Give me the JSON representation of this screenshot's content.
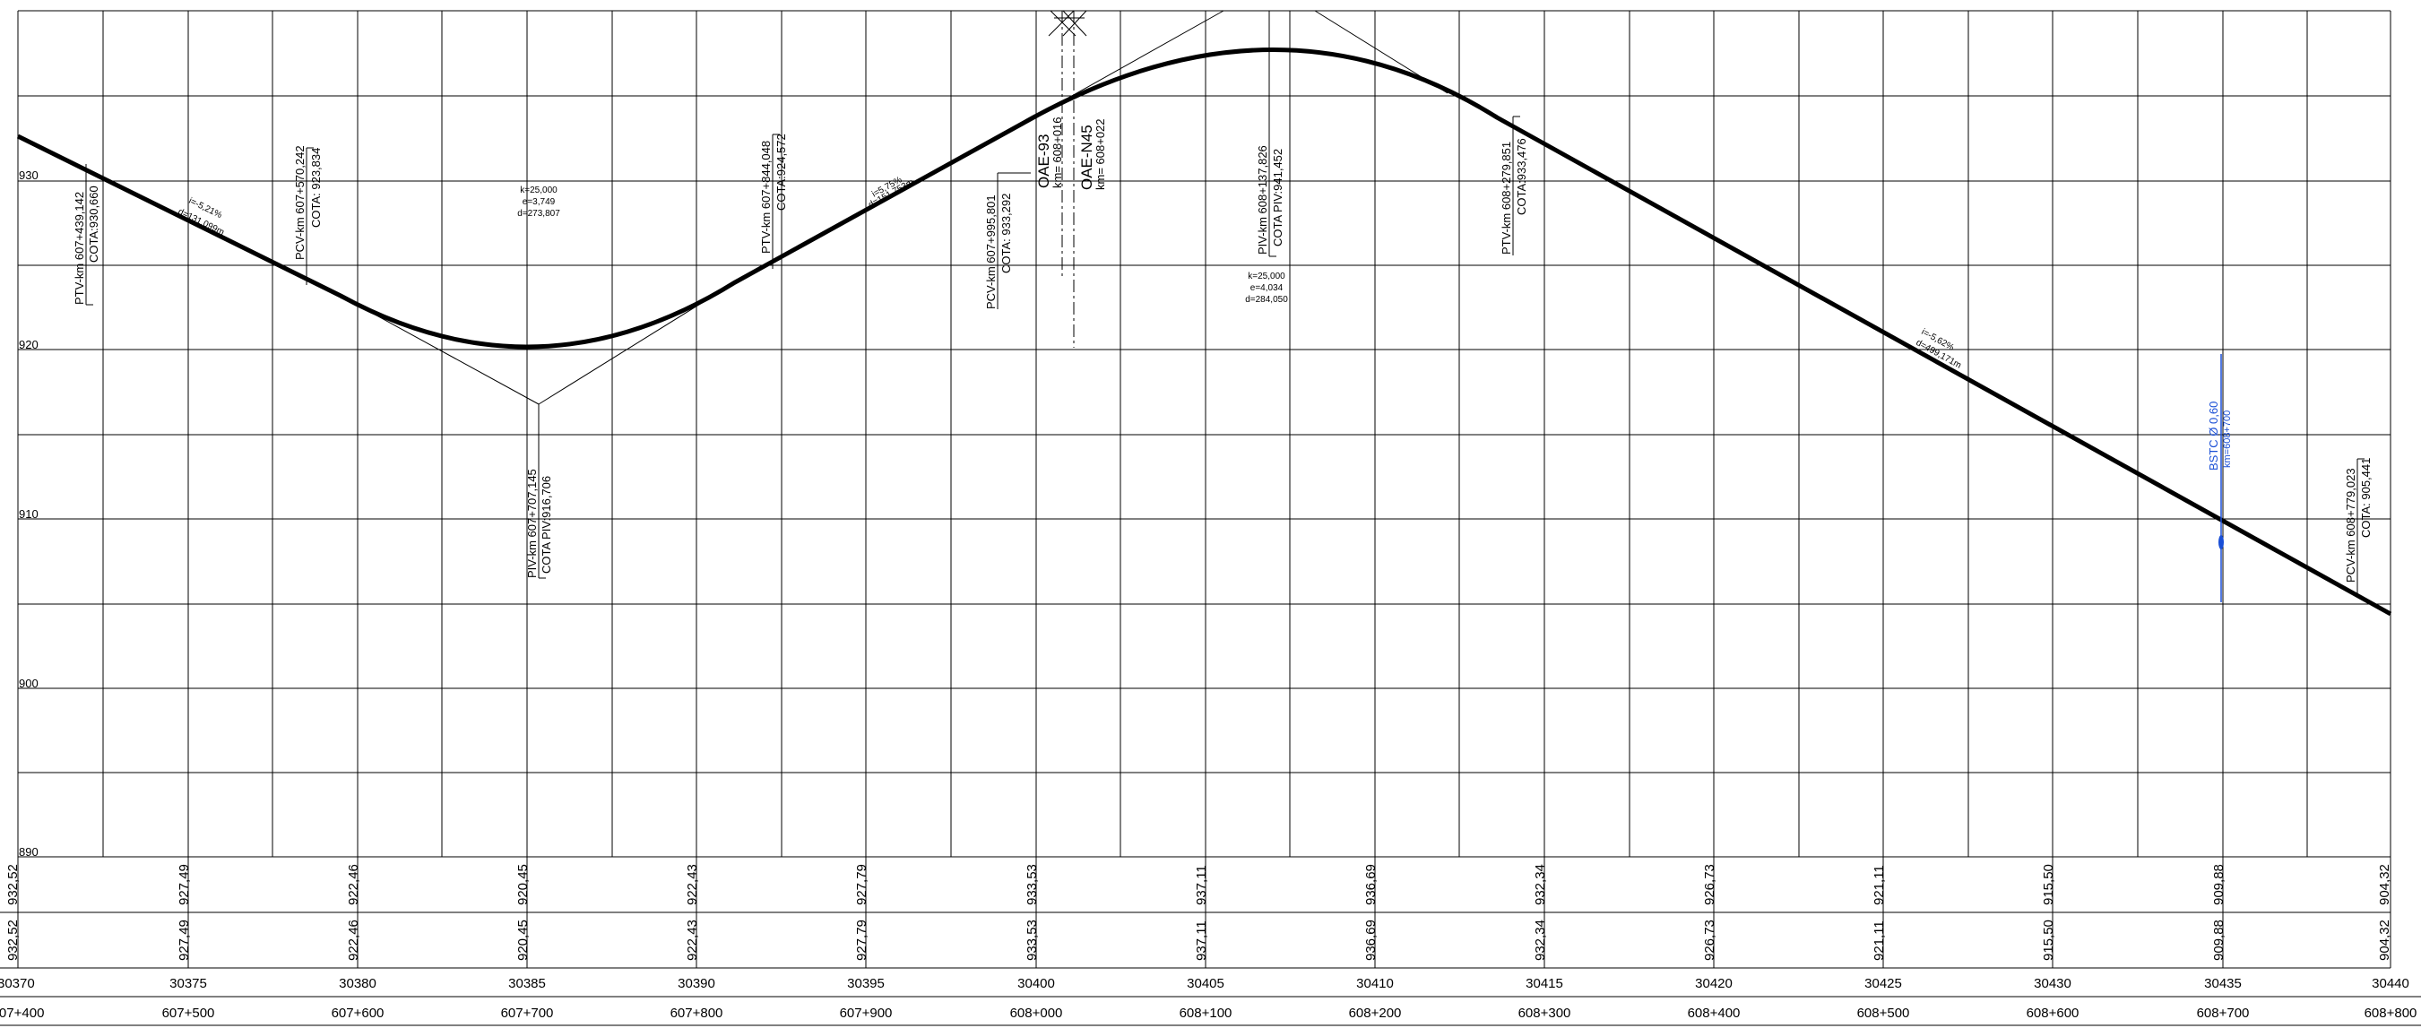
{
  "profile": {
    "y_axis_labels": [
      "930",
      "920",
      "910",
      "900",
      "890"
    ],
    "x_axis_stations": [
      "30370",
      "30375",
      "30380",
      "30385",
      "30390",
      "30395",
      "30400",
      "30405",
      "30410",
      "30415",
      "30420",
      "30425",
      "30430",
      "30435",
      "30440"
    ],
    "x_axis_km": [
      "607+400",
      "607+500",
      "607+600",
      "607+700",
      "607+800",
      "607+900",
      "608+000",
      "608+100",
      "608+200",
      "608+300",
      "608+400",
      "608+500",
      "608+600",
      "608+700",
      "608+800"
    ],
    "terrain_elevations": [
      "932,52",
      "927,49",
      "922,46",
      "920,45",
      "922,43",
      "927,79",
      "933,53",
      "937,11",
      "936,69",
      "932,34",
      "926,73",
      "921,11",
      "915,50",
      "909,88",
      "904,32"
    ],
    "design_elevations": [
      "932,52",
      "927,49",
      "922,46",
      "920,45",
      "922,43",
      "927,79",
      "933,53",
      "937,11",
      "936,69",
      "932,34",
      "926,73",
      "921,11",
      "915,50",
      "909,88",
      "904,32"
    ],
    "points": [
      {
        "line1": "PTV-km 607+439,142",
        "line2": "COTA:930,660"
      },
      {
        "line1": "PCV-km 607+570,242",
        "line2": "COTA: 923,834"
      },
      {
        "line1": "PIV-km 607+707,145",
        "line2": "COTA PIV:916,706"
      },
      {
        "line1": "PTV-km 607+844,048",
        "line2": "COTA:924,572"
      },
      {
        "line1": "PCV-km 607+995,801",
        "line2": "COTA: 933,292"
      },
      {
        "line1": "PIV-km 608+137,826",
        "line2": "COTA PIV:941,452"
      },
      {
        "line1": "PTV-km 608+279,851",
        "line2": "COTA:933,476"
      },
      {
        "line1": "PCV-km 608+779,023",
        "line2": "COTA: 905,441"
      }
    ],
    "grades": [
      {
        "line1": "i=-5,21%",
        "line2": "d=131,099m"
      },
      {
        "line1": "i=5,75%",
        "line2": "d=151,753m"
      },
      {
        "line1": "i=-5,62%",
        "line2": "d=499,171m"
      }
    ],
    "curves": [
      {
        "k": "k=25,000",
        "e": "e=3,749",
        "d": "d=273,807"
      },
      {
        "k": "k=25,000",
        "e": "e=4,034",
        "d": "d=284,050"
      }
    ],
    "structures": [
      {
        "name": "OAE-93",
        "km": "km= 608+016"
      },
      {
        "name": "OAE-N45",
        "km": "km= 608+022"
      }
    ],
    "culvert": {
      "name": "BSTC Ø 0,60",
      "km": "km=608+700"
    },
    "colors": {
      "line": "#000000",
      "culvert": "#1a4fd6"
    }
  }
}
